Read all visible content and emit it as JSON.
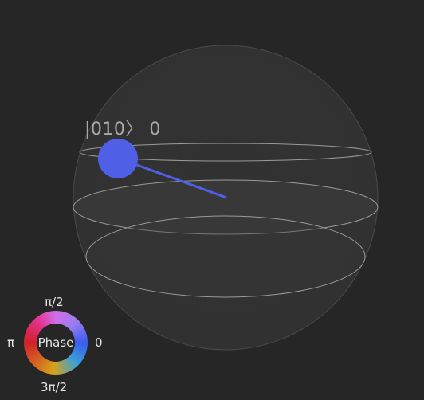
{
  "state": {
    "ket": "|010",
    "ket_close": "〉",
    "value": "0"
  },
  "phase_wheel": {
    "center": "Phase",
    "top": "π/2",
    "left": "π",
    "right": "0",
    "bottom": "3π/2"
  },
  "colors": {
    "background": "#262626",
    "state_vector": "#4f5fe6",
    "sphere_outline": "#8a8a8a"
  }
}
